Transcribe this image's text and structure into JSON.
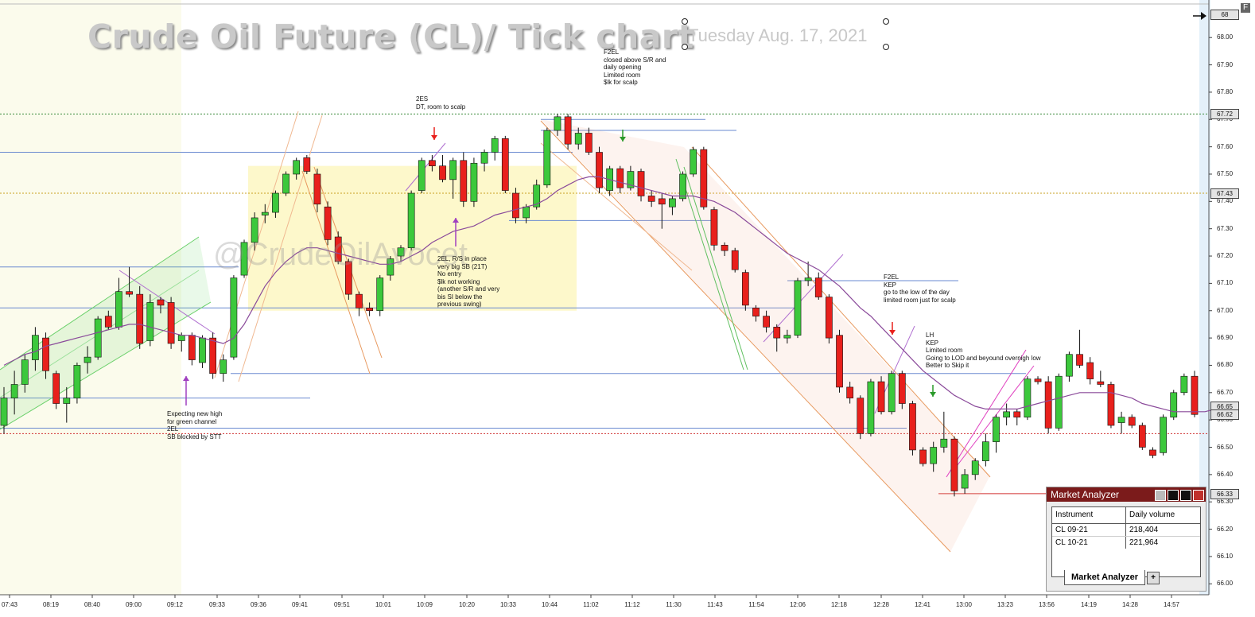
{
  "header": {
    "title": "Crude Oil Future (CL)/ Tick chart",
    "date": "Tuesday Aug. 17, 2021",
    "watermark": "@CrudeOilAvocet",
    "corner_label": "F"
  },
  "chart_data": {
    "type": "candlestick",
    "title": "Crude Oil Future (CL)/ Tick chart",
    "subtitle": "Tuesday Aug. 17, 2021",
    "ylim": [
      65.96,
      68.12
    ],
    "y_ticks": [
      "66.00",
      "66.10",
      "66.20",
      "66.30",
      "66.40",
      "66.50",
      "66.60",
      "66.70",
      "66.80",
      "66.90",
      "67.00",
      "67.10",
      "67.20",
      "67.30",
      "67.40",
      "67.50",
      "67.60",
      "67.70",
      "67.80",
      "67.90",
      "68.00"
    ],
    "price_flags": [
      "68",
      "67.72",
      "67.43",
      "66.65",
      "66.62",
      "66.33"
    ],
    "x_ticks": [
      "07:43",
      "08:19",
      "08:40",
      "09:00",
      "09:12",
      "09:33",
      "09:36",
      "09:41",
      "09:51",
      "10:01",
      "10:09",
      "10:20",
      "10:33",
      "10:44",
      "11:02",
      "11:12",
      "11:30",
      "11:43",
      "11:54",
      "12:06",
      "12:18",
      "12:28",
      "12:41",
      "13:00",
      "13:23",
      "13:56",
      "14:19",
      "14:28",
      "14:57"
    ],
    "candles": [
      {
        "o": 66.58,
        "h": 66.72,
        "l": 66.55,
        "c": 66.68
      },
      {
        "o": 66.68,
        "h": 66.78,
        "l": 66.62,
        "c": 66.73
      },
      {
        "o": 66.73,
        "h": 66.84,
        "l": 66.7,
        "c": 66.82
      },
      {
        "o": 66.82,
        "h": 66.94,
        "l": 66.78,
        "c": 66.91
      },
      {
        "o": 66.9,
        "h": 66.92,
        "l": 66.75,
        "c": 66.78
      },
      {
        "o": 66.77,
        "h": 66.78,
        "l": 66.64,
        "c": 66.66
      },
      {
        "o": 66.66,
        "h": 66.72,
        "l": 66.59,
        "c": 66.68
      },
      {
        "o": 66.68,
        "h": 66.81,
        "l": 66.66,
        "c": 66.8
      },
      {
        "o": 66.81,
        "h": 66.87,
        "l": 66.77,
        "c": 66.83
      },
      {
        "o": 66.83,
        "h": 66.98,
        "l": 66.82,
        "c": 66.97
      },
      {
        "o": 66.98,
        "h": 67.0,
        "l": 66.93,
        "c": 66.94
      },
      {
        "o": 66.94,
        "h": 67.12,
        "l": 66.93,
        "c": 67.07
      },
      {
        "o": 67.07,
        "h": 67.16,
        "l": 67.05,
        "c": 67.06
      },
      {
        "o": 67.06,
        "h": 67.09,
        "l": 66.86,
        "c": 66.88
      },
      {
        "o": 66.89,
        "h": 67.06,
        "l": 66.87,
        "c": 67.03
      },
      {
        "o": 67.04,
        "h": 67.05,
        "l": 66.99,
        "c": 67.02
      },
      {
        "o": 67.03,
        "h": 67.05,
        "l": 66.86,
        "c": 66.88
      },
      {
        "o": 66.89,
        "h": 66.92,
        "l": 66.85,
        "c": 66.91
      },
      {
        "o": 66.91,
        "h": 66.92,
        "l": 66.8,
        "c": 66.82
      },
      {
        "o": 66.81,
        "h": 66.91,
        "l": 66.79,
        "c": 66.9
      },
      {
        "o": 66.9,
        "h": 66.92,
        "l": 66.75,
        "c": 66.77
      },
      {
        "o": 66.77,
        "h": 66.84,
        "l": 66.74,
        "c": 66.82
      },
      {
        "o": 66.83,
        "h": 67.13,
        "l": 66.82,
        "c": 67.12
      },
      {
        "o": 67.13,
        "h": 67.26,
        "l": 67.12,
        "c": 67.25
      },
      {
        "o": 67.25,
        "h": 67.36,
        "l": 67.22,
        "c": 67.34
      },
      {
        "o": 67.35,
        "h": 67.39,
        "l": 67.32,
        "c": 67.36
      },
      {
        "o": 67.36,
        "h": 67.44,
        "l": 67.34,
        "c": 67.43
      },
      {
        "o": 67.43,
        "h": 67.51,
        "l": 67.42,
        "c": 67.5
      },
      {
        "o": 67.5,
        "h": 67.56,
        "l": 67.48,
        "c": 67.55
      },
      {
        "o": 67.56,
        "h": 67.57,
        "l": 67.5,
        "c": 67.51
      },
      {
        "o": 67.5,
        "h": 67.52,
        "l": 67.36,
        "c": 67.39
      },
      {
        "o": 67.38,
        "h": 67.4,
        "l": 67.24,
        "c": 67.26
      },
      {
        "o": 67.27,
        "h": 67.29,
        "l": 67.17,
        "c": 67.18
      },
      {
        "o": 67.18,
        "h": 67.19,
        "l": 67.04,
        "c": 67.06
      },
      {
        "o": 67.06,
        "h": 67.07,
        "l": 66.98,
        "c": 67.01
      },
      {
        "o": 67.01,
        "h": 67.03,
        "l": 66.98,
        "c": 67.0
      },
      {
        "o": 67.0,
        "h": 67.13,
        "l": 66.98,
        "c": 67.12
      },
      {
        "o": 67.13,
        "h": 67.2,
        "l": 67.11,
        "c": 67.19
      },
      {
        "o": 67.2,
        "h": 67.24,
        "l": 67.18,
        "c": 67.23
      },
      {
        "o": 67.23,
        "h": 67.44,
        "l": 67.22,
        "c": 67.43
      },
      {
        "o": 67.44,
        "h": 67.56,
        "l": 67.43,
        "c": 67.55
      },
      {
        "o": 67.55,
        "h": 67.57,
        "l": 67.51,
        "c": 67.53
      },
      {
        "o": 67.53,
        "h": 67.57,
        "l": 67.47,
        "c": 67.48
      },
      {
        "o": 67.48,
        "h": 67.56,
        "l": 67.41,
        "c": 67.55
      },
      {
        "o": 67.55,
        "h": 67.58,
        "l": 67.38,
        "c": 67.4
      },
      {
        "o": 67.4,
        "h": 67.56,
        "l": 67.38,
        "c": 67.54
      },
      {
        "o": 67.54,
        "h": 67.59,
        "l": 67.51,
        "c": 67.58
      },
      {
        "o": 67.58,
        "h": 67.64,
        "l": 67.55,
        "c": 67.63
      },
      {
        "o": 67.63,
        "h": 67.64,
        "l": 67.43,
        "c": 67.44
      },
      {
        "o": 67.43,
        "h": 67.45,
        "l": 67.32,
        "c": 67.34
      },
      {
        "o": 67.34,
        "h": 67.39,
        "l": 67.32,
        "c": 67.38
      },
      {
        "o": 67.38,
        "h": 67.48,
        "l": 67.37,
        "c": 67.46
      },
      {
        "o": 67.46,
        "h": 67.67,
        "l": 67.45,
        "c": 67.66
      },
      {
        "o": 67.66,
        "h": 67.72,
        "l": 67.64,
        "c": 67.71
      },
      {
        "o": 67.71,
        "h": 67.72,
        "l": 67.59,
        "c": 67.61
      },
      {
        "o": 67.61,
        "h": 67.67,
        "l": 67.59,
        "c": 67.65
      },
      {
        "o": 67.65,
        "h": 67.67,
        "l": 67.57,
        "c": 67.58
      },
      {
        "o": 67.58,
        "h": 67.6,
        "l": 67.43,
        "c": 67.45
      },
      {
        "o": 67.44,
        "h": 67.53,
        "l": 67.42,
        "c": 67.52
      },
      {
        "o": 67.52,
        "h": 67.53,
        "l": 67.43,
        "c": 67.45
      },
      {
        "o": 67.45,
        "h": 67.53,
        "l": 67.44,
        "c": 67.51
      },
      {
        "o": 67.51,
        "h": 67.52,
        "l": 67.4,
        "c": 67.42
      },
      {
        "o": 67.42,
        "h": 67.44,
        "l": 67.38,
        "c": 67.4
      },
      {
        "o": 67.41,
        "h": 67.43,
        "l": 67.3,
        "c": 67.39
      },
      {
        "o": 67.38,
        "h": 67.42,
        "l": 67.35,
        "c": 67.41
      },
      {
        "o": 67.41,
        "h": 67.51,
        "l": 67.4,
        "c": 67.5
      },
      {
        "o": 67.5,
        "h": 67.6,
        "l": 67.49,
        "c": 67.59
      },
      {
        "o": 67.59,
        "h": 67.6,
        "l": 67.37,
        "c": 67.38
      },
      {
        "o": 67.37,
        "h": 67.38,
        "l": 67.22,
        "c": 67.24
      },
      {
        "o": 67.24,
        "h": 67.25,
        "l": 67.2,
        "c": 67.22
      },
      {
        "o": 67.22,
        "h": 67.23,
        "l": 67.14,
        "c": 67.15
      },
      {
        "o": 67.14,
        "h": 67.15,
        "l": 67.0,
        "c": 67.02
      },
      {
        "o": 67.01,
        "h": 67.02,
        "l": 66.96,
        "c": 66.98
      },
      {
        "o": 66.98,
        "h": 67.0,
        "l": 66.92,
        "c": 66.94
      },
      {
        "o": 66.94,
        "h": 66.95,
        "l": 66.85,
        "c": 66.9
      },
      {
        "o": 66.9,
        "h": 66.93,
        "l": 66.88,
        "c": 66.91
      },
      {
        "o": 66.91,
        "h": 67.12,
        "l": 66.9,
        "c": 67.11
      },
      {
        "o": 67.11,
        "h": 67.18,
        "l": 67.09,
        "c": 67.12
      },
      {
        "o": 67.12,
        "h": 67.14,
        "l": 67.04,
        "c": 67.05
      },
      {
        "o": 67.05,
        "h": 67.06,
        "l": 66.88,
        "c": 66.9
      },
      {
        "o": 66.91,
        "h": 66.93,
        "l": 66.7,
        "c": 66.72
      },
      {
        "o": 66.72,
        "h": 66.74,
        "l": 66.66,
        "c": 66.68
      },
      {
        "o": 66.68,
        "h": 66.69,
        "l": 66.53,
        "c": 66.55
      },
      {
        "o": 66.55,
        "h": 66.75,
        "l": 66.54,
        "c": 66.74
      },
      {
        "o": 66.74,
        "h": 66.76,
        "l": 66.62,
        "c": 66.63
      },
      {
        "o": 66.63,
        "h": 66.78,
        "l": 66.62,
        "c": 66.77
      },
      {
        "o": 66.77,
        "h": 66.78,
        "l": 66.64,
        "c": 66.66
      },
      {
        "o": 66.66,
        "h": 66.67,
        "l": 66.47,
        "c": 66.49
      },
      {
        "o": 66.49,
        "h": 66.5,
        "l": 66.43,
        "c": 66.44
      },
      {
        "o": 66.44,
        "h": 66.52,
        "l": 66.41,
        "c": 66.5
      },
      {
        "o": 66.5,
        "h": 66.63,
        "l": 66.48,
        "c": 66.53
      },
      {
        "o": 66.53,
        "h": 66.54,
        "l": 66.32,
        "c": 66.34
      },
      {
        "o": 66.35,
        "h": 66.42,
        "l": 66.33,
        "c": 66.4
      },
      {
        "o": 66.4,
        "h": 66.46,
        "l": 66.38,
        "c": 66.45
      },
      {
        "o": 66.45,
        "h": 66.55,
        "l": 66.43,
        "c": 66.52
      },
      {
        "o": 66.52,
        "h": 66.62,
        "l": 66.48,
        "c": 66.61
      },
      {
        "o": 66.61,
        "h": 66.66,
        "l": 66.58,
        "c": 66.63
      },
      {
        "o": 66.63,
        "h": 66.64,
        "l": 66.58,
        "c": 66.61
      },
      {
        "o": 66.61,
        "h": 66.76,
        "l": 66.6,
        "c": 66.75
      },
      {
        "o": 66.75,
        "h": 66.76,
        "l": 66.73,
        "c": 66.74
      },
      {
        "o": 66.74,
        "h": 66.76,
        "l": 66.55,
        "c": 66.57
      },
      {
        "o": 66.57,
        "h": 66.77,
        "l": 66.56,
        "c": 66.76
      },
      {
        "o": 66.76,
        "h": 66.85,
        "l": 66.74,
        "c": 66.84
      },
      {
        "o": 66.84,
        "h": 66.93,
        "l": 66.79,
        "c": 66.8
      },
      {
        "o": 66.81,
        "h": 66.83,
        "l": 66.73,
        "c": 66.75
      },
      {
        "o": 66.74,
        "h": 66.78,
        "l": 66.72,
        "c": 66.73
      },
      {
        "o": 66.73,
        "h": 66.74,
        "l": 66.57,
        "c": 66.58
      },
      {
        "o": 66.59,
        "h": 66.63,
        "l": 66.55,
        "c": 66.61
      },
      {
        "o": 66.61,
        "h": 66.62,
        "l": 66.57,
        "c": 66.58
      },
      {
        "o": 66.58,
        "h": 66.59,
        "l": 66.49,
        "c": 66.5
      },
      {
        "o": 66.49,
        "h": 66.5,
        "l": 66.46,
        "c": 66.47
      },
      {
        "o": 66.48,
        "h": 66.62,
        "l": 66.47,
        "c": 66.61
      },
      {
        "o": 66.61,
        "h": 66.71,
        "l": 66.6,
        "c": 66.7
      },
      {
        "o": 66.7,
        "h": 66.77,
        "l": 66.69,
        "c": 66.76
      },
      {
        "o": 66.76,
        "h": 66.78,
        "l": 66.61,
        "c": 66.62
      }
    ],
    "vwap": [
      66.8,
      66.82,
      66.84,
      66.85,
      66.87,
      66.88,
      66.89,
      66.9,
      66.91,
      66.92,
      66.93,
      66.94,
      66.95,
      66.95,
      66.94,
      66.93,
      66.92,
      66.91,
      66.91,
      66.9,
      66.89,
      66.88,
      66.9,
      66.95,
      67.02,
      67.09,
      67.14,
      67.18,
      67.21,
      67.23,
      67.23,
      67.22,
      67.21,
      67.2,
      67.19,
      67.18,
      67.17,
      67.17,
      67.18,
      67.2,
      67.22,
      67.25,
      67.27,
      67.29,
      67.3,
      67.31,
      67.33,
      67.35,
      67.36,
      67.37,
      67.38,
      67.39,
      67.41,
      67.44,
      67.46,
      67.48,
      67.49,
      67.49,
      67.48,
      67.47,
      67.46,
      67.45,
      67.44,
      67.43,
      67.42,
      67.42,
      67.42,
      67.41,
      67.4,
      67.38,
      67.36,
      67.33,
      67.3,
      67.27,
      67.24,
      67.21,
      67.19,
      67.17,
      67.15,
      67.12,
      67.09,
      67.05,
      67.01,
      66.98,
      66.94,
      66.9,
      66.86,
      66.82,
      66.78,
      66.75,
      66.72,
      66.69,
      66.67,
      66.65,
      66.64,
      66.64,
      66.64,
      66.64,
      66.65,
      66.66,
      66.67,
      66.68,
      66.69,
      66.7,
      66.7,
      66.7,
      66.7,
      66.69,
      66.68,
      66.66,
      66.65,
      66.64,
      66.63,
      66.63,
      66.63,
      66.63,
      66.64
    ],
    "annotations": [
      {
        "lines": [
          "F2EL",
          "closed above S/R and",
          "daily opening",
          "Limited room",
          "$lk for scalp"
        ]
      },
      {
        "lines": [
          "2ES",
          "DT, room to scalp"
        ]
      },
      {
        "lines": [
          "2EL, R/S in place",
          "very big SB (21T)",
          "No entry",
          "$lk not working",
          "(another S/R and very",
          "bis SI below the",
          "previous swing)"
        ]
      },
      {
        "lines": [
          "Expecting new high",
          "for green channel",
          "2EL",
          "SB blocked by STT"
        ]
      },
      {
        "lines": [
          "F2EL",
          "KEP",
          "go to the low of the day",
          "limited room just for scalp"
        ]
      },
      {
        "lines": [
          "LH",
          "KEP",
          "Limited room",
          "Going to LOD and beyound overnigh low",
          "Better to Skip it"
        ]
      }
    ],
    "colors": {
      "up": "#3cc83c",
      "down": "#e8201c",
      "vwap": "#8a4a9a",
      "bg_zone": "#fdf7c2"
    }
  },
  "market_analyzer": {
    "title": "Market Analyzer",
    "columns": [
      "Instrument",
      "Daily volume"
    ],
    "rows": [
      {
        "instrument": "CL 09-21",
        "volume": "218,404"
      },
      {
        "instrument": "CL 10-21",
        "volume": "221,964"
      }
    ],
    "tab_label": "Market Analyzer",
    "add_label": "+"
  }
}
